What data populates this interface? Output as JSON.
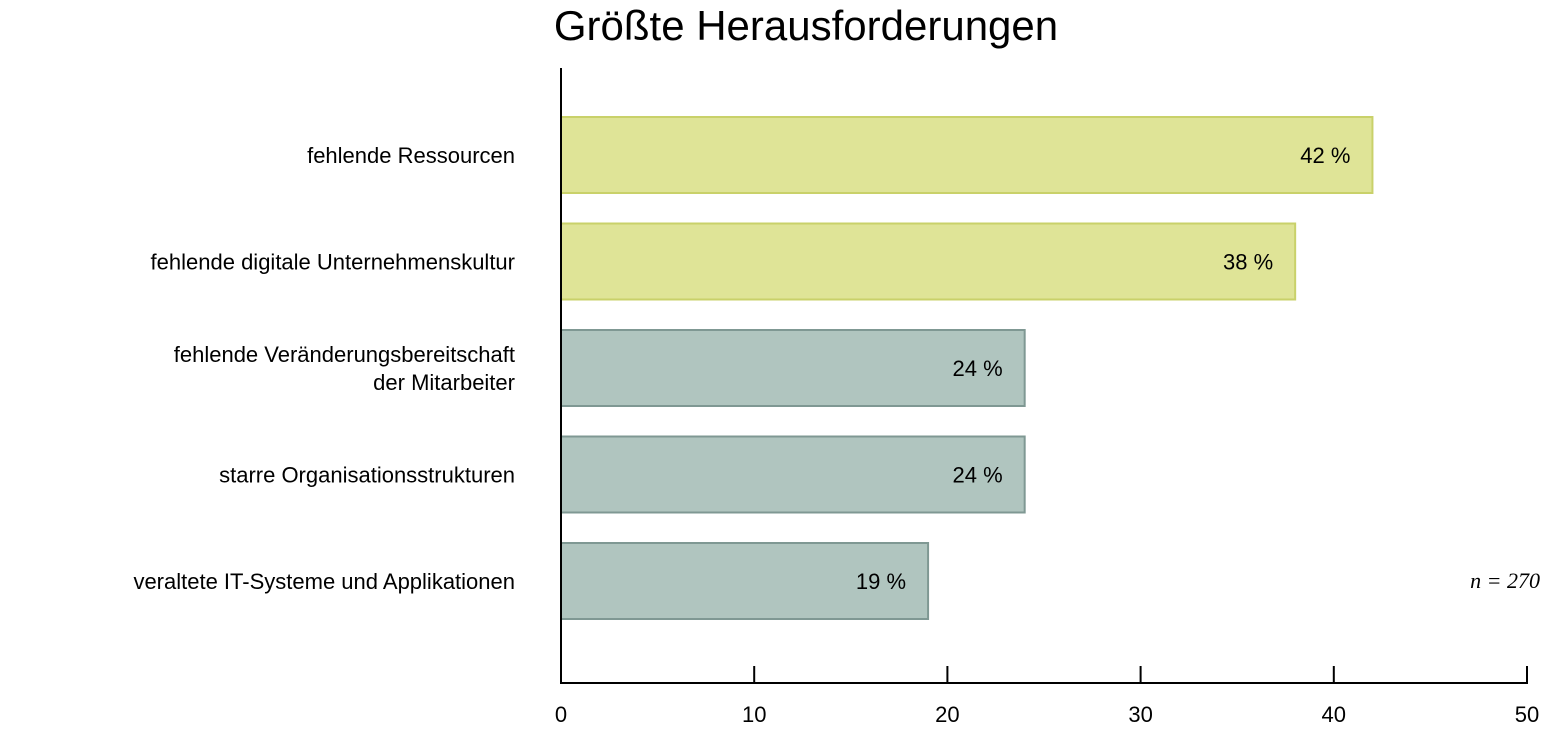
{
  "chart_data": {
    "type": "bar",
    "orientation": "horizontal",
    "title": "Größte Herausforderungen",
    "categories": [
      [
        "fehlende Ressourcen"
      ],
      [
        "fehlende digitale Unternehmenskultur"
      ],
      [
        "fehlende Veränderungsbereitschaft",
        "der Mitarbeiter"
      ],
      [
        "starre Organisationsstrukturen"
      ],
      [
        "veraltete IT-Systeme und Applikationen"
      ]
    ],
    "values": [
      42,
      38,
      24,
      24,
      19
    ],
    "value_labels": [
      "42 %",
      "38 %",
      "24 %",
      "24 %",
      "19 %"
    ],
    "xlim": [
      0,
      50
    ],
    "xticks": [
      0,
      10,
      20,
      30,
      40,
      50
    ],
    "grid": false,
    "note": "n = 270",
    "colors": {
      "highlight_fill": "#dfe497",
      "highlight_stroke": "#c9d16a",
      "default_fill": "#b0c5bf",
      "default_stroke": "#7f9893",
      "axis": "#000000"
    },
    "highlight_indices": [
      0,
      1
    ]
  }
}
